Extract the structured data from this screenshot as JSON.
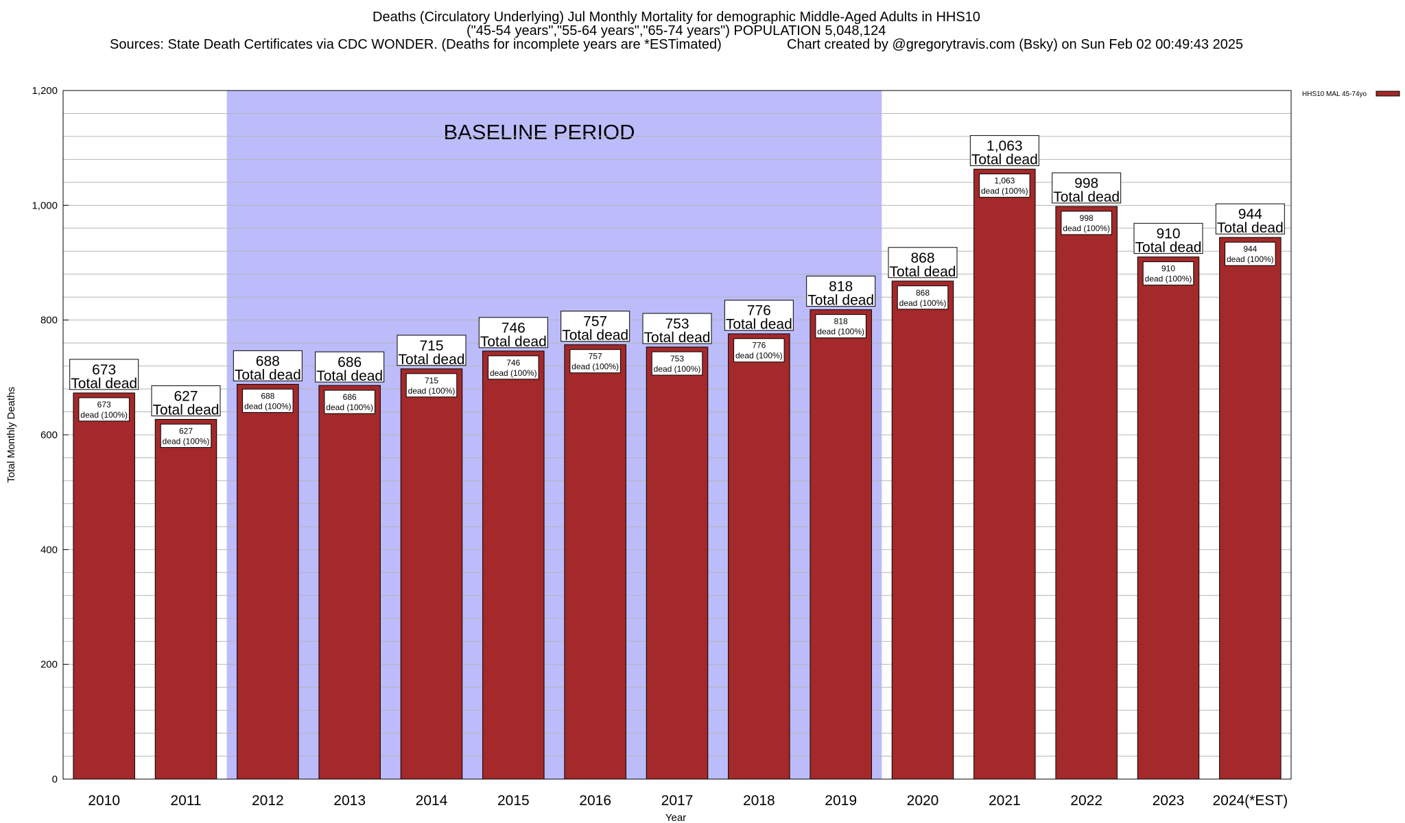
{
  "title": {
    "line1": "Deaths (Circulatory Underlying) Jul Monthly Mortality for demographic Middle-Aged Adults in HHS10",
    "line2": "(\"45-54 years\",\"55-64 years\",\"65-74 years\") POPULATION 5,048,124",
    "line3_left": "Sources: State Death Certificates via CDC WONDER. (Deaths for incomplete years are *ESTimated)",
    "line3_right": "Chart created by @gregorytravis.com (Bsky) on Sun Feb 02 00:49:43 2025"
  },
  "colors": {
    "bar": "#a4292a",
    "baseline_shade": "#bcbcfb",
    "grid": "#b4b4b4"
  },
  "chart_data": {
    "type": "bar",
    "categories": [
      "2010",
      "2011",
      "2012",
      "2013",
      "2014",
      "2015",
      "2016",
      "2017",
      "2018",
      "2019",
      "2020",
      "2021",
      "2022",
      "2023",
      "2024(*EST)"
    ],
    "series": [
      {
        "name": "HHS10 MAL 45-74yo",
        "values": [
          673,
          627,
          688,
          686,
          715,
          746,
          757,
          753,
          776,
          818,
          868,
          1063,
          998,
          910,
          944
        ]
      }
    ],
    "top_labels": [
      "673",
      "627",
      "688",
      "686",
      "715",
      "746",
      "757",
      "753",
      "776",
      "818",
      "868",
      "1,063",
      "998",
      "910",
      "944"
    ],
    "top_label_suffix": "Total dead",
    "inner_label_suffix": "dead (100%)",
    "xlabel": "Year",
    "ylabel": "Total Monthly Deaths",
    "ylim": [
      0,
      1200
    ],
    "yticks": [
      0,
      200,
      400,
      600,
      800,
      1000,
      1200
    ],
    "ytick_labels": [
      "0",
      "200",
      "400",
      "600",
      "800",
      "1,000",
      "1,200"
    ],
    "minor_grid_step": 40,
    "baseline_period": {
      "label": "BASELINE PERIOD",
      "from": "2012",
      "to": "2019"
    },
    "legend": {
      "position": "top-right",
      "label": "HHS10 MAL 45-74yo"
    },
    "grid": true
  }
}
